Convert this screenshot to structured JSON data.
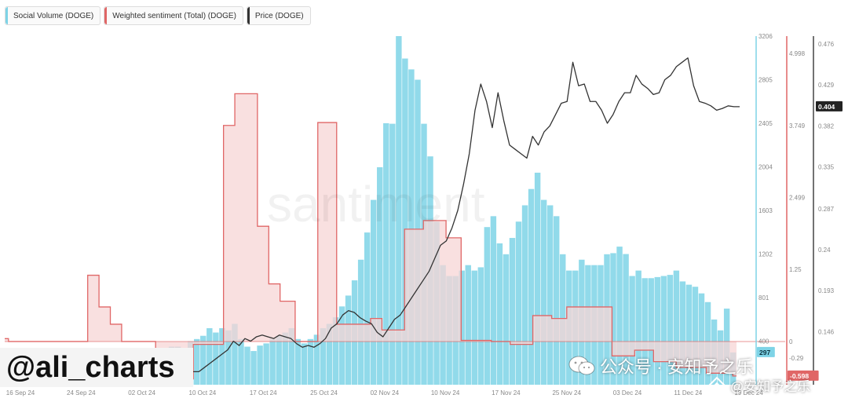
{
  "legend": {
    "social": "Social Volume (DOGE)",
    "sentiment": "Weighted sentiment (Total) (DOGE)",
    "price": "Price (DOGE)"
  },
  "watermark_text": "santiment",
  "author": "@ali_charts",
  "overlay": {
    "account": "公众号 · 安知予之乐",
    "handle": "@安知予之乐"
  },
  "colors": {
    "social": "#7ed3e6",
    "sentiment_fill": "#f7d5d5",
    "sentiment_line": "#e06666",
    "price": "#333333",
    "zero_line": "#e06666"
  },
  "chart_data": {
    "type": "line",
    "x_ticks": [
      "16 Sep 24",
      "24 Sep 24",
      "02 Oct 24",
      "10 Oct 24",
      "17 Oct 24",
      "25 Oct 24",
      "02 Nov 24",
      "10 Nov 24",
      "17 Nov 24",
      "25 Nov 24",
      "03 Dec 24",
      "11 Dec 24",
      "19 Dec 24"
    ],
    "axes": {
      "social_volume": {
        "ticks": [
          "3206",
          "2805",
          "2405",
          "2004",
          "1603",
          "1202",
          "801",
          "400"
        ],
        "current": "297"
      },
      "sentiment": {
        "ticks": [
          "4.998",
          "3.749",
          "2.499",
          "1.25",
          "0",
          "-0.29"
        ],
        "current": "-0.598"
      },
      "price": {
        "ticks": [
          "0.476",
          "0.429",
          "0.382",
          "0.335",
          "0.287",
          "0.24",
          "0.193",
          "0.146"
        ],
        "current": "0.404"
      }
    },
    "series": [
      {
        "name": "Social Volume (DOGE)",
        "kind": "bar",
        "unit": "count",
        "ylim": [
          0,
          3206
        ],
        "values": [
          60,
          40,
          20,
          30,
          50,
          60,
          40,
          30,
          50,
          60,
          80,
          40,
          30,
          50,
          60,
          40,
          30,
          20,
          40,
          60,
          80,
          90,
          150,
          200,
          250,
          300,
          350,
          350,
          300,
          400,
          420,
          450,
          520,
          480,
          520,
          500,
          560,
          420,
          350,
          310,
          360,
          380,
          420,
          450,
          480,
          520,
          420,
          380,
          420,
          460,
          520,
          560,
          620,
          720,
          820,
          960,
          1150,
          1400,
          1700,
          2000,
          2405,
          2400,
          3206,
          3000,
          2900,
          2805,
          2400,
          2100,
          1500,
          1100,
          1000,
          1000,
          1050,
          1100,
          1050,
          1080,
          1450,
          1550,
          1300,
          1200,
          1350,
          1500,
          1650,
          1800,
          1950,
          1700,
          1650,
          1550,
          1200,
          1050,
          1050,
          1150,
          1100,
          1100,
          1100,
          1200,
          1210,
          1270,
          1202,
          1000,
          1050,
          980,
          980,
          990,
          1000,
          1010,
          1050,
          950,
          920,
          901,
          840,
          760,
          600,
          500,
          700,
          297
        ]
      },
      {
        "name": "Weighted sentiment (Total) (DOGE)",
        "kind": "step",
        "unit": "score",
        "ylim": [
          -0.75,
          5.3
        ],
        "values": [
          0.05,
          0,
          0,
          0,
          0,
          0,
          0,
          0,
          0,
          0,
          0,
          0,
          0,
          0,
          0,
          0,
          0,
          0,
          0,
          0,
          0,
          0,
          1.15,
          1.15,
          1.15,
          0.6,
          0.6,
          0.6,
          0.3,
          0.3,
          0.3,
          0,
          0,
          0,
          0,
          0,
          0,
          0,
          0,
          0,
          -0.35,
          -0.35,
          -0.35,
          -0.55,
          -0.55,
          -0.55,
          -0.65,
          -0.65,
          -0.65,
          -0.65,
          -0.05,
          -0.05,
          -0.05,
          -0.05,
          -0.05,
          -0.05,
          -0.05,
          -0.05,
          3.75,
          3.75,
          3.75,
          4.3,
          4.3,
          4.3,
          4.3,
          4.3,
          4.3,
          2.0,
          2.0,
          2.0,
          1.0,
          1.0,
          1.0,
          0.7,
          0.7,
          0.7,
          0.7,
          0,
          0,
          0,
          0,
          0,
          0,
          3.8,
          3.8,
          3.8,
          3.8,
          3.8,
          0.3,
          0.3,
          0.3,
          0.3,
          0.3,
          0.3,
          0.3,
          0.3,
          0.3,
          0.4,
          0.4,
          0.4,
          0.2,
          0.2,
          0.2,
          0.2,
          0.2,
          0.2,
          1.95,
          1.95,
          1.95,
          1.95,
          1.95,
          2.1,
          2.1,
          2.1,
          2.1,
          2.1,
          2.1,
          1.8,
          1.8,
          1.8,
          1.8,
          0.02,
          0.02,
          0.02,
          0.02,
          0.02,
          0.02,
          0.02,
          0.02,
          0,
          0,
          0,
          0,
          0,
          -0.05,
          -0.05,
          -0.05,
          -0.05,
          -0.05,
          -0.05,
          0.45,
          0.45,
          0.45,
          0.45,
          0.45,
          0.4,
          0.4,
          0.4,
          0.4,
          0.6,
          0.6,
          0.6,
          0.6,
          0.6,
          0.6,
          0.6,
          0.6,
          0.6,
          0.6,
          0.6,
          0.6,
          -0.25,
          -0.25,
          -0.25,
          -0.25,
          -0.25,
          -0.25,
          -0.15,
          -0.15,
          -0.15,
          -0.15,
          -0.15,
          -0.35,
          -0.35,
          -0.35,
          -0.35,
          -0.35,
          -0.35,
          -0.45,
          -0.45,
          -0.45,
          -0.45,
          -0.45,
          -0.45,
          -0.45,
          -0.45,
          -0.55,
          -0.55,
          -0.55,
          -0.55,
          -0.55,
          -0.55,
          -0.55,
          -0.598
        ]
      },
      {
        "name": "Price (DOGE)",
        "kind": "line",
        "unit": "USD",
        "ylim": [
          0.085,
          0.485
        ],
        "values": [
          0.1,
          0.1,
          0.105,
          0.11,
          0.115,
          0.12,
          0.125,
          0.135,
          0.13,
          0.138,
          0.135,
          0.14,
          0.142,
          0.14,
          0.138,
          0.142,
          0.14,
          0.138,
          0.132,
          0.128,
          0.13,
          0.128,
          0.132,
          0.138,
          0.15,
          0.155,
          0.165,
          0.17,
          0.168,
          0.162,
          0.158,
          0.155,
          0.145,
          0.14,
          0.15,
          0.16,
          0.165,
          0.175,
          0.185,
          0.195,
          0.205,
          0.215,
          0.23,
          0.245,
          0.25,
          0.265,
          0.285,
          0.315,
          0.35,
          0.4,
          0.43,
          0.41,
          0.38,
          0.42,
          0.388,
          0.36,
          0.355,
          0.35,
          0.345,
          0.37,
          0.36,
          0.375,
          0.382,
          0.395,
          0.408,
          0.41,
          0.455,
          0.428,
          0.43,
          0.41,
          0.41,
          0.4,
          0.385,
          0.395,
          0.41,
          0.42,
          0.42,
          0.44,
          0.43,
          0.425,
          0.418,
          0.42,
          0.435,
          0.44,
          0.45,
          0.455,
          0.46,
          0.428,
          0.41,
          0.408,
          0.405,
          0.4,
          0.402,
          0.405,
          0.404,
          0.404
        ]
      }
    ],
    "legend_position": "top-left",
    "grid": false
  }
}
